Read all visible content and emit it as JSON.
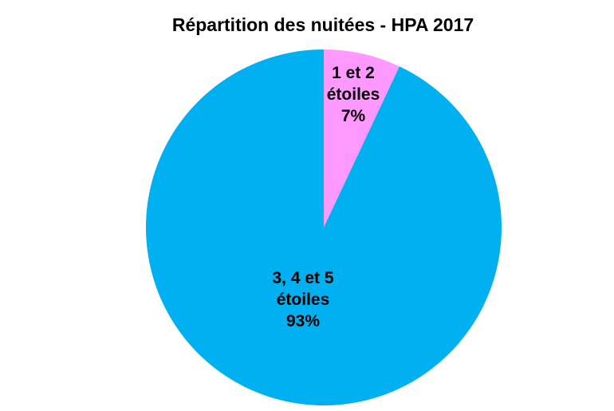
{
  "chart_data": {
    "type": "pie",
    "title": "Répartition des nuitées - HPA 2017",
    "slices": [
      {
        "label_lines": [
          "1 et 2",
          "étoiles",
          "7%"
        ],
        "value": 7,
        "color": "#ff99ff"
      },
      {
        "label_lines": [
          "3, 4 et 5",
          "étoiles",
          "93%"
        ],
        "value": 93,
        "color": "#00b0f0"
      }
    ]
  }
}
